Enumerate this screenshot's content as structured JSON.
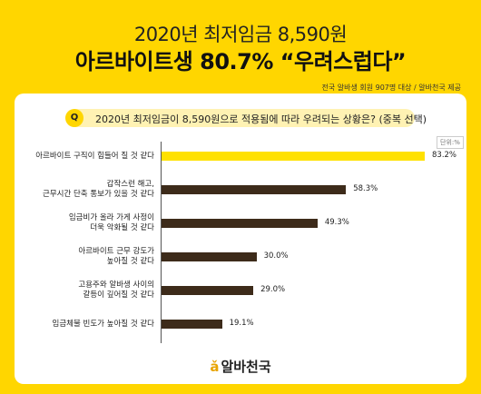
{
  "title_line1": "2020년 최저임금 8,590원",
  "title_line2": "아르바이트생 80.7% “우려스럽다”",
  "source_note": "전국 알바생 회원 907명 대상 / 알바천국 제공",
  "question_badge": "Q",
  "question": "2020년 최저임금이 8,590원으로 적용됨에 따라 우려되는 상황은? (중복 선택)",
  "unit_label": "단위:%",
  "logo_icon": "ǎ",
  "logo_text": "알바천국",
  "colors": {
    "highlight": "#FFE100",
    "bar": "#3D2B1A",
    "background": "#FFD600"
  },
  "chart_data": {
    "type": "bar",
    "orientation": "horizontal",
    "categories": [
      [
        "아르바이트 구직이 힘들어 질 것 같다"
      ],
      [
        "갑작스런 해고,",
        "근무시간 단축 통보가 있을 것 같다"
      ],
      [
        "임금비가 올라 가게 사정이",
        "더욱 악화될 것 같다"
      ],
      [
        "아르바이트 근무 강도가",
        "높아질 것 같다"
      ],
      [
        "고용주와 알바생 사이의",
        "갈등이 깊어질 것 같다"
      ],
      [
        "임금체불 빈도가 높아질 것 같다"
      ]
    ],
    "values": [
      83.2,
      58.3,
      49.3,
      30.0,
      29.0,
      19.1
    ],
    "value_labels": [
      "83.2%",
      "58.3%",
      "49.3%",
      "30.0%",
      "29.0%",
      "19.1%"
    ],
    "xlim": [
      0,
      100
    ],
    "grid": false
  }
}
